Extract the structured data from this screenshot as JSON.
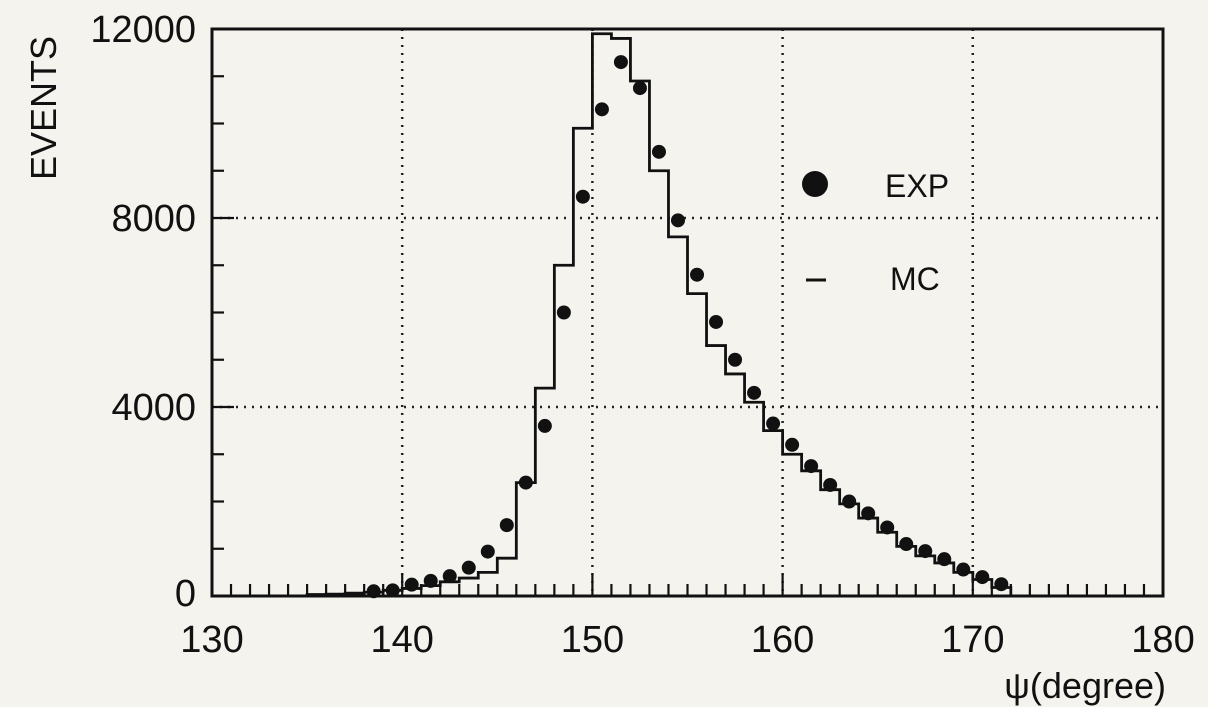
{
  "chart_data": {
    "type": "scatter",
    "title": "",
    "xlabel": "ψ(degree)",
    "ylabel": "EVENTS",
    "xlim": [
      130,
      180
    ],
    "ylim": [
      0,
      12000
    ],
    "grid": true,
    "legend_position": "right",
    "x_ticks": [
      "130",
      "140",
      "150",
      "160",
      "170",
      "180"
    ],
    "y_ticks": [
      "0",
      "4000",
      "8000",
      "12000"
    ],
    "series": [
      {
        "name": "EXP",
        "style": "points",
        "x": [
          138,
          139,
          140,
          141,
          142,
          143,
          144,
          145,
          146,
          147,
          148,
          149,
          150,
          151,
          152,
          153,
          154,
          155,
          156,
          157,
          158,
          159,
          160,
          161,
          162,
          163,
          164,
          165,
          166,
          167,
          168,
          169,
          170,
          171
        ],
        "y": [
          100,
          120,
          240,
          320,
          420,
          600,
          940,
          1500,
          2400,
          3600,
          6000,
          8450,
          10300,
          11300,
          10750,
          9400,
          7950,
          6800,
          5800,
          5000,
          4300,
          3650,
          3200,
          2750,
          2350,
          2000,
          1750,
          1450,
          1100,
          950,
          780,
          560,
          400,
          250
        ]
      },
      {
        "name": "MC",
        "style": "step",
        "edges": [
          135,
          136,
          137,
          138,
          139,
          140,
          141,
          142,
          143,
          144,
          145,
          146,
          147,
          148,
          149,
          150,
          151,
          152,
          153,
          154,
          155,
          156,
          157,
          158,
          159,
          160,
          161,
          162,
          163,
          164,
          165,
          166,
          167,
          168,
          169,
          170,
          171,
          172
        ],
        "values": [
          30,
          40,
          60,
          80,
          120,
          160,
          220,
          300,
          380,
          500,
          800,
          2400,
          4400,
          7000,
          9900,
          11900,
          11800,
          10900,
          9000,
          7600,
          6400,
          5300,
          4700,
          4100,
          3500,
          3000,
          2650,
          2250,
          1950,
          1650,
          1350,
          1050,
          850,
          700,
          500,
          350,
          180
        ]
      }
    ],
    "colors": {
      "ink": "#111111",
      "background": "#f4f3ee",
      "grid": "#222222"
    }
  }
}
